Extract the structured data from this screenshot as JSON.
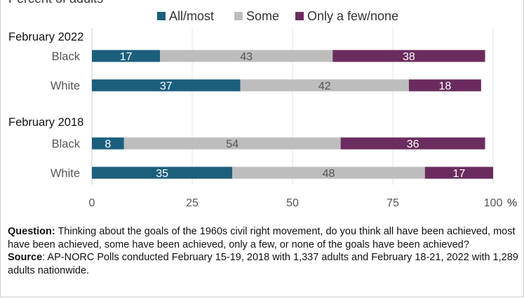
{
  "chart_data": {
    "type": "bar",
    "stacked": true,
    "orientation": "horizontal",
    "subtitle": "Percent of adults",
    "groups": [
      {
        "label": "February 2022",
        "rows": [
          {
            "label": "Black",
            "values": [
              17,
              43,
              38
            ]
          },
          {
            "label": "White",
            "values": [
              37,
              42,
              18
            ]
          }
        ]
      },
      {
        "label": "February 2018",
        "rows": [
          {
            "label": "Black",
            "values": [
              8,
              54,
              36
            ]
          },
          {
            "label": "White",
            "values": [
              35,
              48,
              17
            ]
          }
        ]
      }
    ],
    "series": [
      {
        "name": "All/most",
        "color": "#1b5f7d"
      },
      {
        "name": "Some",
        "color": "#bdbdbd"
      },
      {
        "name": "Only a few/none",
        "color": "#6a2c5e"
      }
    ],
    "xlim": [
      0,
      100
    ],
    "xticks": [
      0,
      25,
      50,
      75,
      100
    ],
    "x_unit": "%",
    "grid": true,
    "legend": "top"
  },
  "footnote": {
    "question_label": "Question:",
    "question_text": " Thinking about the goals of the 1960s civil right movement, do you think all have been achieved, most have been achieved, some have been achieved, only a few, or none of the goals have been achieved?",
    "source_label": "Source",
    "source_text": ": AP-NORC Polls conducted February 15-19, 2018 with 1,337 adults and February 18-21, 2022 with 1,289 adults nationwide."
  }
}
